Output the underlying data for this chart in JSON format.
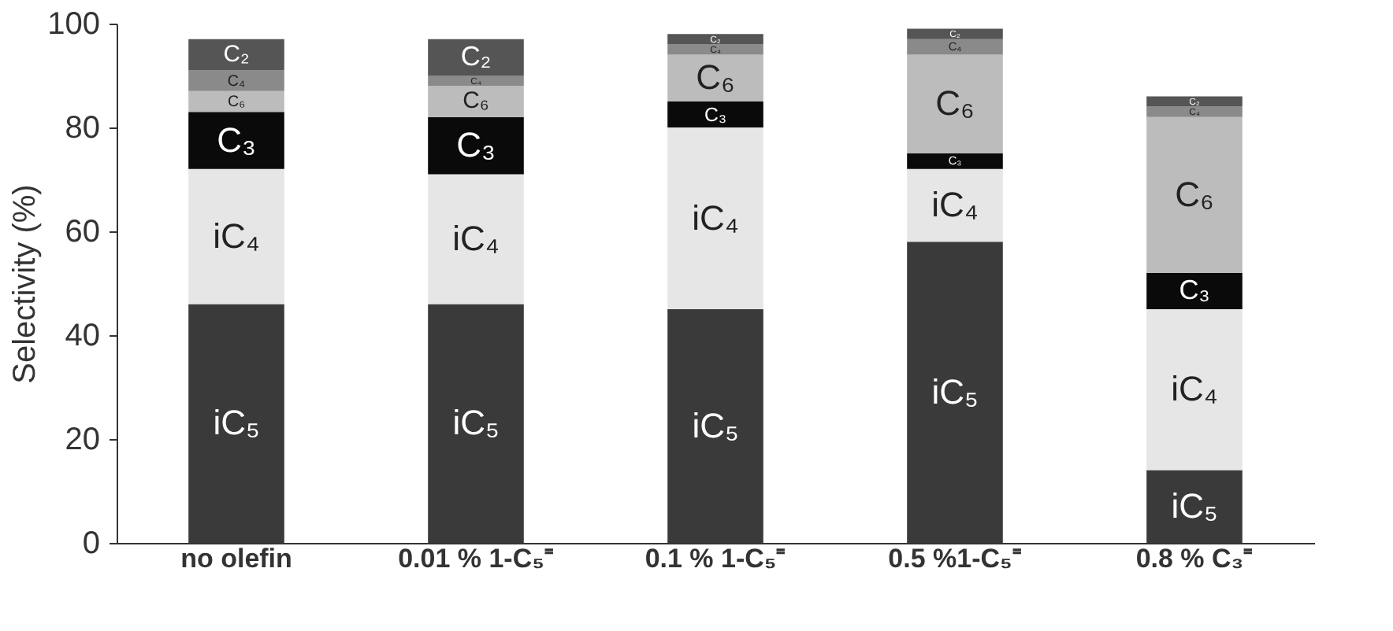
{
  "chart_data": {
    "type": "bar",
    "stacked": true,
    "ylabel": "Selectivity (%)",
    "categories": [
      "no olefin",
      "0.01 % 1-C₅⁼",
      "0.1 % 1-C₅⁼",
      "0.5 %1-C₅⁼",
      "0.8 % C₃⁼"
    ],
    "series": [
      {
        "name": "iC₅",
        "color": "#3a3a3a",
        "values": [
          46,
          46,
          45,
          58,
          14
        ]
      },
      {
        "name": "iC₄",
        "color": "#e6e6e6",
        "values": [
          26,
          25,
          35,
          14,
          31
        ]
      },
      {
        "name": "C₃",
        "color": "#0a0a0a",
        "values": [
          11,
          11,
          5,
          3,
          7
        ]
      },
      {
        "name": "C₆",
        "color": "#bcbcbc",
        "values": [
          4,
          6,
          9,
          19,
          30
        ]
      },
      {
        "name": "C₄",
        "color": "#8a8a8a",
        "values": [
          4,
          2,
          2,
          3,
          2
        ]
      },
      {
        "name": "C₂",
        "color": "#555555",
        "values": [
          6,
          7,
          2,
          2,
          2
        ]
      }
    ],
    "ylim": [
      0,
      100
    ],
    "yticks": [
      0,
      20,
      40,
      60,
      80,
      100
    ],
    "grid": false,
    "legend": false
  }
}
